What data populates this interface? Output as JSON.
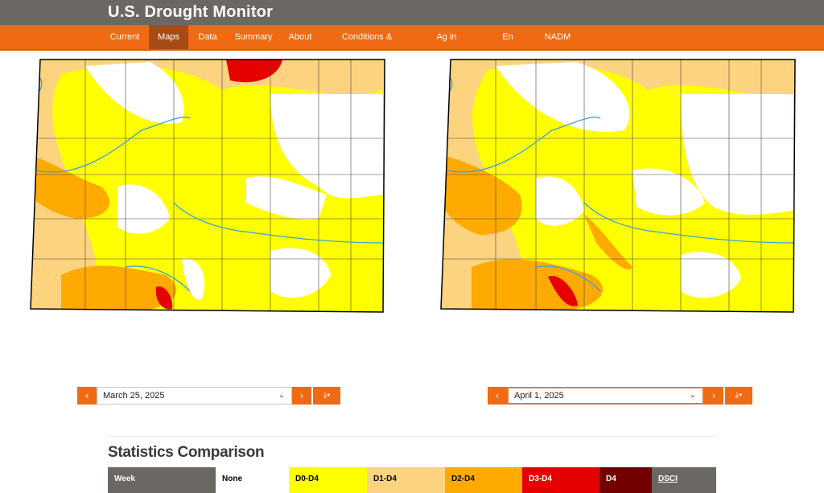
{
  "header": {
    "title": "U.S. Drought Monitor"
  },
  "nav": {
    "items": [
      {
        "label": "Current"
      },
      {
        "label": "Maps"
      },
      {
        "label": "Data"
      },
      {
        "label": "Summary"
      },
      {
        "label": "About"
      },
      {
        "label": "Conditions & Outlooks"
      },
      {
        "label": "Ag in Drought"
      },
      {
        "label": "En Español"
      },
      {
        "label": "NADM"
      }
    ],
    "active": "Maps"
  },
  "left_panel": {
    "date": "March 25, 2025",
    "prev": "‹",
    "next": "›",
    "download": "⤓▾"
  },
  "right_panel": {
    "date": "April 1, 2025",
    "prev": "‹",
    "next": "›",
    "download": "⤓▾"
  },
  "stats": {
    "title": "Statistics Comparison",
    "columns": [
      "Week",
      "None",
      "D0-D4",
      "D1-D4",
      "D2-D4",
      "D3-D4",
      "D4",
      "DSCI"
    ]
  },
  "colors": {
    "none": "#ffffff",
    "d0": "#ffff00",
    "d1": "#fcd37f",
    "d2": "#ffaa00",
    "d3": "#e60000",
    "d4": "#730000",
    "accent": "#ef6a12",
    "header": "#6b6763"
  }
}
